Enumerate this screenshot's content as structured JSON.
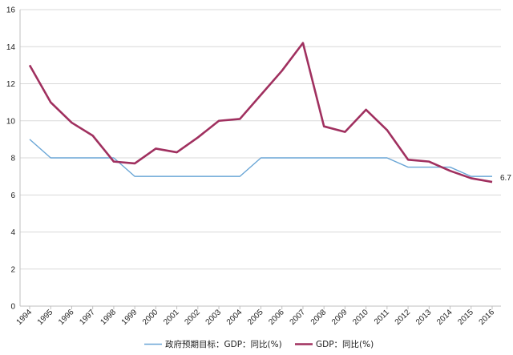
{
  "chart_data": {
    "type": "line",
    "title": "",
    "xlabel": "",
    "ylabel": "",
    "ylim": [
      0,
      16
    ],
    "yticks": [
      0,
      2,
      4,
      6,
      8,
      10,
      12,
      14,
      16
    ],
    "grid": true,
    "legend_position": "bottom",
    "categories": [
      "1994",
      "1995",
      "1996",
      "1997",
      "1998",
      "1999",
      "2000",
      "2001",
      "2002",
      "2003",
      "2004",
      "2005",
      "2006",
      "2007",
      "2008",
      "2009",
      "2010",
      "2011",
      "2012",
      "2013",
      "2014",
      "2015",
      "2016"
    ],
    "series": [
      {
        "name": "政府预期目标：GDP：同比(%)",
        "color": "#6aa6d6",
        "values": [
          9,
          8,
          8,
          8,
          8,
          7,
          7,
          7,
          7,
          7,
          7,
          8,
          8,
          8,
          8,
          8,
          8,
          8,
          7.5,
          7.5,
          7.5,
          7,
          7
        ]
      },
      {
        "name": "GDP：同比(%)",
        "color": "#a0305f",
        "values": [
          13.0,
          11.0,
          9.9,
          9.2,
          7.8,
          7.7,
          8.5,
          8.3,
          9.1,
          10.0,
          10.1,
          11.4,
          12.7,
          14.2,
          9.7,
          9.4,
          10.6,
          9.5,
          7.9,
          7.8,
          7.3,
          6.9,
          6.7
        ]
      }
    ],
    "annotations": [
      {
        "text": "6.7",
        "series": 1,
        "index": 22
      }
    ]
  }
}
